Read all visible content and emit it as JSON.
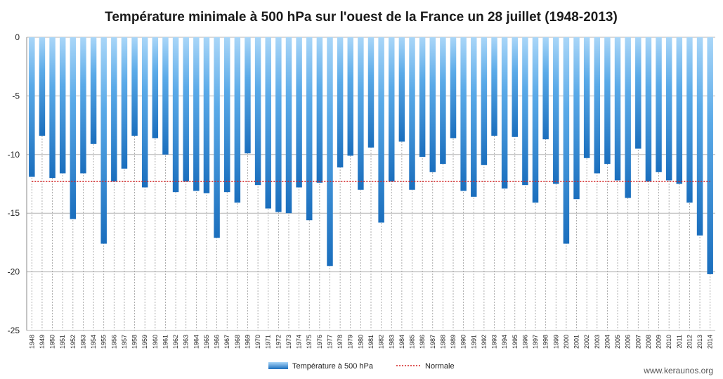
{
  "chart_data": {
    "type": "bar",
    "title": "Température minimale à  500 hPa sur l'ouest de la France un 28 juillet (1948-2013)",
    "xlabel": "",
    "ylabel": "",
    "ylim": [
      -25,
      0
    ],
    "yticks": [
      0,
      -5,
      -10,
      -15,
      -20,
      -25
    ],
    "grid": true,
    "legend_position": "bottom-center",
    "categories": [
      "1948",
      "1949",
      "1950",
      "1951",
      "1952",
      "1953",
      "1954",
      "1955",
      "1956",
      "1957",
      "1958",
      "1959",
      "1960",
      "1961",
      "1962",
      "1963",
      "1964",
      "1965",
      "1966",
      "1967",
      "1968",
      "1969",
      "1970",
      "1971",
      "1972",
      "1973",
      "1974",
      "1975",
      "1976",
      "1977",
      "1978",
      "1979",
      "1980",
      "1981",
      "1982",
      "1983",
      "1984",
      "1985",
      "1986",
      "1987",
      "1988",
      "1989",
      "1990",
      "1991",
      "1992",
      "1993",
      "1994",
      "1995",
      "1996",
      "1997",
      "1998",
      "1999",
      "2000",
      "2001",
      "2002",
      "2003",
      "2004",
      "2005",
      "2006",
      "2007",
      "2008",
      "2009",
      "2010",
      "2011",
      "2012",
      "2013",
      "2014"
    ],
    "series": [
      {
        "name": "Température à 500 hPa",
        "type": "bar",
        "color": "#2f7fcc",
        "values": [
          -11.9,
          -8.4,
          -12.0,
          -11.6,
          -15.5,
          -11.6,
          -9.1,
          -17.6,
          -12.3,
          -11.2,
          -8.4,
          -12.8,
          -8.6,
          -10.0,
          -13.2,
          -12.3,
          -13.1,
          -13.3,
          -17.1,
          -13.2,
          -14.1,
          -9.9,
          -12.6,
          -14.6,
          -14.9,
          -15.0,
          -12.8,
          -15.6,
          -12.4,
          -19.5,
          -11.1,
          -10.1,
          -13.0,
          -9.4,
          -15.8,
          -12.3,
          -8.9,
          -13.0,
          -10.2,
          -11.5,
          -10.8,
          -8.6,
          -13.1,
          -13.6,
          -10.9,
          -8.4,
          -12.9,
          -8.5,
          -12.6,
          -14.1,
          -8.7,
          -12.5,
          -17.6,
          -13.8,
          -10.3,
          -11.6,
          -10.8,
          -12.2,
          -13.7,
          -9.5,
          -12.3,
          -11.5,
          -12.2,
          -12.5,
          -14.1,
          -16.9,
          -20.2
        ]
      },
      {
        "name": "Normale",
        "type": "line",
        "color": "#d42020",
        "style": "dotted",
        "value": -12.3
      }
    ],
    "credit": "www.keraunos.org"
  }
}
